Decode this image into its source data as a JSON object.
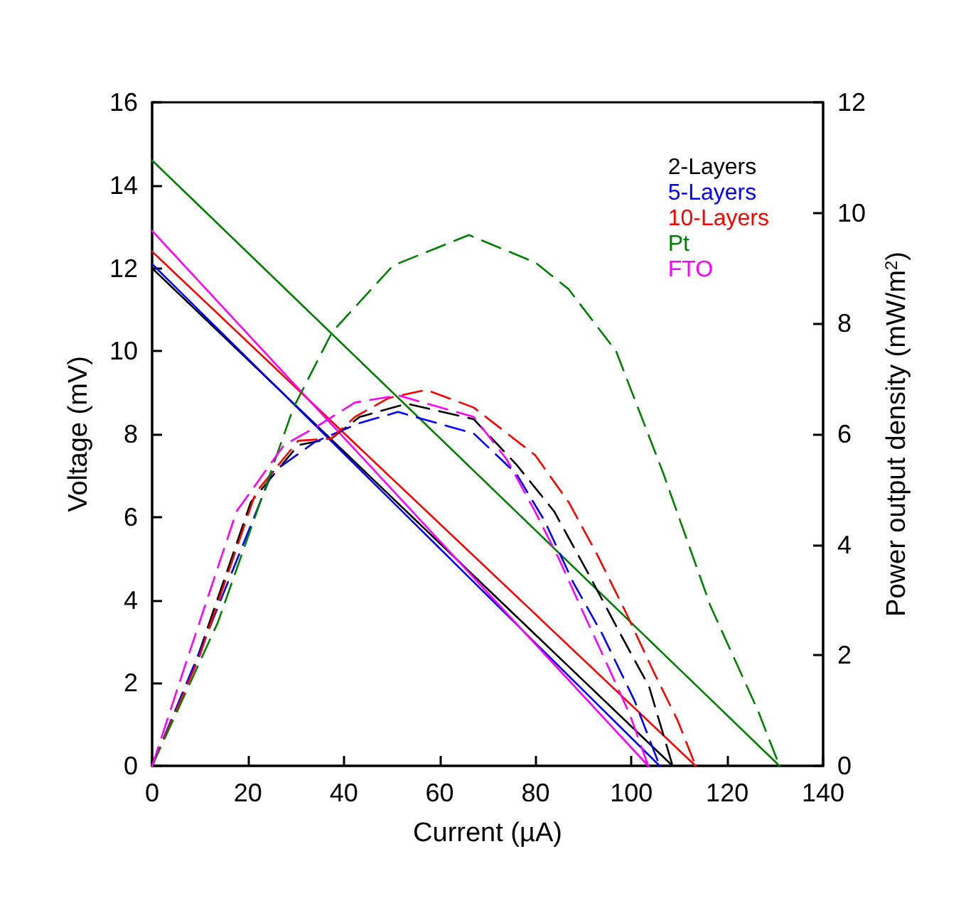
{
  "chart_data": {
    "type": "line",
    "xlabel": "Current (µA)",
    "ylabel": "Voltage (mV)",
    "y2label": "Power output density (mW/m$^{2}$)",
    "xlim": [
      0,
      140
    ],
    "xticks": [
      0,
      20,
      40,
      60,
      80,
      100,
      120,
      140
    ],
    "ylim": [
      0,
      16
    ],
    "yticks": [
      0,
      2,
      4,
      6,
      8,
      10,
      12,
      14,
      16
    ],
    "y2lim": [
      0,
      12
    ],
    "y2ticks": [
      0,
      2,
      4,
      6,
      8,
      10,
      12
    ],
    "grid": false,
    "legend": "top right",
    "marker": "none",
    "series": [
      {
        "name": "2-Layers",
        "color": "#000000",
        "line_style": "solid",
        "x": [
          0,
          108.6
        ],
        "values": [
          12.0,
          0
        ]
      },
      {
        "name": "5-Layers",
        "color": "#0000ff",
        "line_style": "solid",
        "x": [
          0,
          105.9
        ],
        "values": [
          12.1,
          0
        ]
      },
      {
        "name": "10-Layers",
        "color": "#ff0000",
        "line_style": "solid",
        "x": [
          0,
          113.4
        ],
        "values": [
          12.4,
          0
        ]
      },
      {
        "name": "Pt",
        "color": "#008000",
        "line_style": "solid",
        "x": [
          0,
          130.9
        ],
        "values": [
          14.6,
          0
        ]
      },
      {
        "name": "FTO",
        "color": "#ff00ff",
        "line_style": "solid",
        "x": [
          0,
          103.5
        ],
        "values": [
          12.9,
          0
        ]
      },
      {
        "color": "#000000",
        "line_style": "dashed",
        "axis": "y2",
        "x": [
          0,
          8.7,
          20.6,
          30.5,
          37.4,
          43.3,
          53.2,
          67.1,
          76,
          83.9,
          91,
          97.8,
          103.7,
          108.6
        ],
        "values": [
          0,
          1.77,
          4.77,
          5.8,
          5.92,
          6.31,
          6.55,
          6.27,
          5.45,
          4.6,
          3.48,
          2.37,
          1.43,
          0
        ]
      },
      {
        "color": "#0000ff",
        "line_style": "dashed",
        "axis": "y2",
        "x": [
          0,
          12,
          25,
          34,
          43.3,
          51.3,
          67.1,
          76,
          81.9,
          87.9,
          94,
          100.7,
          105.9
        ],
        "values": [
          0,
          2.5,
          5.3,
          5.86,
          6.2,
          6.4,
          6.01,
          5.28,
          4.43,
          3.31,
          2.37,
          1.17,
          0
        ]
      },
      {
        "color": "#ff0000",
        "line_style": "dashed",
        "axis": "y2",
        "x": [
          0,
          9.7,
          21.6,
          30.5,
          37.4,
          42.3,
          49.3,
          57.2,
          67.1,
          79.9,
          86.9,
          92.8,
          98.7,
          104.7,
          109.6,
          113.4
        ],
        "values": [
          0,
          1.94,
          4.94,
          5.88,
          5.92,
          6.31,
          6.65,
          6.8,
          6.48,
          5.62,
          4.77,
          3.83,
          2.8,
          1.69,
          0.83,
          0
        ]
      },
      {
        "color": "#008000",
        "line_style": "dashed",
        "axis": "y2",
        "x": [
          0,
          13.7,
          29.5,
          37.6,
          50.3,
          66.1,
          80,
          86.9,
          96.8,
          106.7,
          116.5,
          126.4,
          130.9
        ],
        "values": [
          0,
          2.59,
          6.48,
          7.85,
          9.05,
          9.6,
          9.1,
          8.62,
          7.5,
          5.28,
          2.89,
          1.0,
          0
        ]
      },
      {
        "color": "#ff00ff",
        "line_style": "dashed",
        "axis": "y2",
        "x": [
          0,
          7.7,
          17.6,
          27.5,
          34.4,
          42.3,
          51.3,
          67.1,
          74,
          79.9,
          84.9,
          89.8,
          94.8,
          99.7,
          103.5
        ],
        "values": [
          0,
          2.03,
          4.6,
          5.8,
          6.14,
          6.57,
          6.7,
          6.31,
          5.54,
          4.6,
          3.74,
          2.8,
          1.86,
          0.92,
          0
        ]
      }
    ]
  }
}
